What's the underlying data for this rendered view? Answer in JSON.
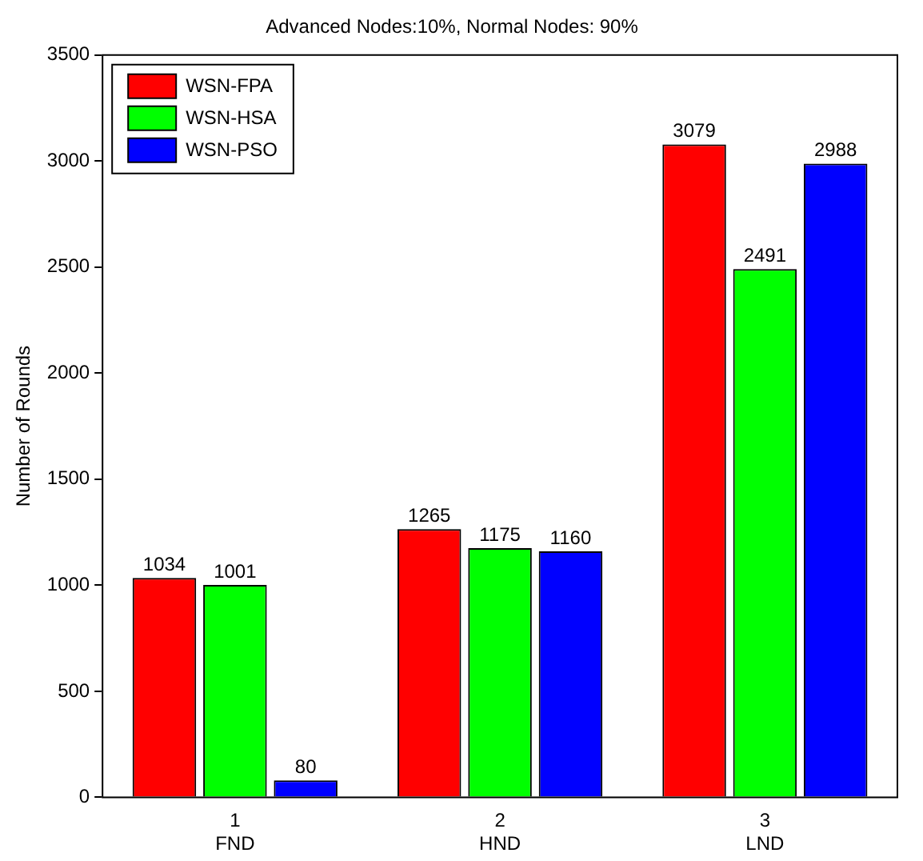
{
  "chart_data": {
    "type": "bar",
    "title": "Advanced Nodes:10%, Normal Nodes: 90%",
    "ylabel": "Number of Rounds",
    "categories": [
      "1\nFND",
      "2\nHND",
      "3\nLND"
    ],
    "series": [
      {
        "name": "WSN-FPA",
        "color": "#ff0000",
        "values": [
          1034,
          1265,
          3079
        ]
      },
      {
        "name": "WSN-HSA",
        "color": "#00ff00",
        "values": [
          1001,
          1175,
          2491
        ]
      },
      {
        "name": "WSN-PSO",
        "color": "#0000ff",
        "values": [
          80,
          1160,
          2988
        ]
      }
    ],
    "ylim": [
      0,
      3500
    ],
    "yticks": [
      0,
      500,
      1000,
      1500,
      2000,
      2500,
      3000,
      3500
    ],
    "grid": false,
    "legend": "top left",
    "data_labels": true
  }
}
